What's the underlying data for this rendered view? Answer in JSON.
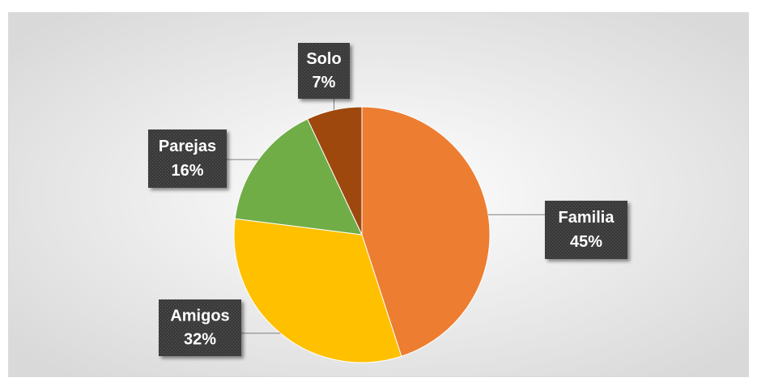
{
  "chart_data": {
    "type": "pie",
    "categories": [
      "Familia",
      "Amigos",
      "Parejas",
      "Solo"
    ],
    "values": [
      45,
      32,
      16,
      7
    ],
    "value_labels": [
      "45%",
      "32%",
      "16%",
      "7%"
    ],
    "colors": [
      "#ED7D31",
      "#FFC000",
      "#70AD47",
      "#9E480E"
    ]
  }
}
